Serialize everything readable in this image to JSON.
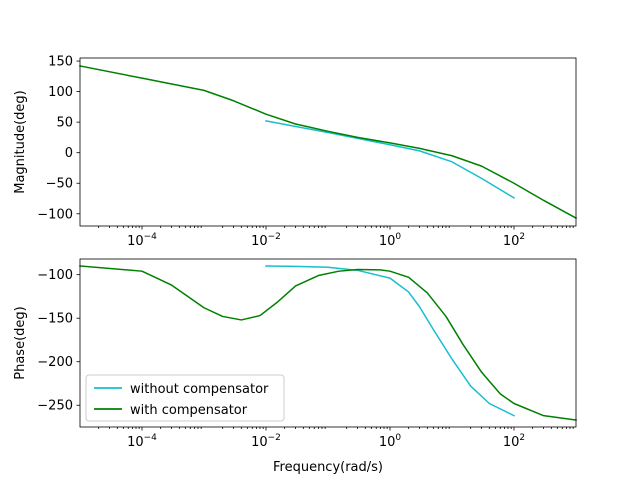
{
  "chart_data": [
    {
      "type": "line",
      "xscale": "log",
      "xlim": [
        1e-05,
        1000
      ],
      "ylim": [
        -120,
        155
      ],
      "xlabel": "",
      "ylabel": "Magnitude(deg)",
      "xticks": [
        0.0001,
        0.01,
        1,
        100
      ],
      "xtick_labels": [
        {
          "base": "10",
          "exp": "−4"
        },
        {
          "base": "10",
          "exp": "−2"
        },
        {
          "base": "10",
          "exp": "0"
        },
        {
          "base": "10",
          "exp": "2"
        }
      ],
      "yticks": [
        -100,
        -50,
        0,
        50,
        100,
        150
      ],
      "ytick_labels": [
        "−100",
        "−50",
        "0",
        "50",
        "100",
        "150"
      ],
      "grid": false,
      "series": [
        {
          "name": "without compensator",
          "color": "#17becf",
          "points": [
            [
              0.01,
              52
            ],
            [
              0.1,
              33
            ],
            [
              1,
              13
            ],
            [
              3,
              3
            ],
            [
              10,
              -15
            ],
            [
              30,
              -42
            ],
            [
              100,
              -74
            ]
          ]
        },
        {
          "name": "with compensator",
          "color": "#008000",
          "points": [
            [
              1e-05,
              142
            ],
            [
              0.0001,
              122
            ],
            [
              0.001,
              102
            ],
            [
              0.003,
              85
            ],
            [
              0.01,
              63
            ],
            [
              0.03,
              47
            ],
            [
              0.1,
              35
            ],
            [
              0.3,
              25
            ],
            [
              1,
              16
            ],
            [
              3,
              7
            ],
            [
              10,
              -5
            ],
            [
              30,
              -22
            ],
            [
              100,
              -50
            ],
            [
              300,
              -78
            ],
            [
              1000,
              -107
            ]
          ]
        }
      ]
    },
    {
      "type": "line",
      "xscale": "log",
      "xlim": [
        1e-05,
        1000
      ],
      "ylim": [
        -275,
        -82
      ],
      "xlabel": "Frequency(rad/s)",
      "ylabel": "Phase(deg)",
      "xticks": [
        0.0001,
        0.01,
        1,
        100
      ],
      "xtick_labels": [
        {
          "base": "10",
          "exp": "−4"
        },
        {
          "base": "10",
          "exp": "−2"
        },
        {
          "base": "10",
          "exp": "0"
        },
        {
          "base": "10",
          "exp": "2"
        }
      ],
      "yticks": [
        -250,
        -200,
        -150,
        -100
      ],
      "ytick_labels": [
        "−250",
        "−200",
        "−150",
        "−100"
      ],
      "grid": false,
      "legend_position": "lower-left",
      "series": [
        {
          "name": "without compensator",
          "color": "#17becf",
          "points": [
            [
              0.01,
              -90
            ],
            [
              0.03,
              -90.5
            ],
            [
              0.1,
              -91.5
            ],
            [
              0.3,
              -95
            ],
            [
              1,
              -104
            ],
            [
              2,
              -120
            ],
            [
              3,
              -137
            ],
            [
              5,
              -163
            ],
            [
              10,
              -197
            ],
            [
              20,
              -228
            ],
            [
              40,
              -248
            ],
            [
              100,
              -262
            ]
          ]
        },
        {
          "name": "with compensator",
          "color": "#008000",
          "points": [
            [
              1e-05,
              -90
            ],
            [
              0.0001,
              -96
            ],
            [
              0.0003,
              -112
            ],
            [
              0.001,
              -138
            ],
            [
              0.002,
              -148
            ],
            [
              0.004,
              -152
            ],
            [
              0.008,
              -147
            ],
            [
              0.015,
              -132
            ],
            [
              0.03,
              -113
            ],
            [
              0.07,
              -101
            ],
            [
              0.15,
              -96
            ],
            [
              0.3,
              -94
            ],
            [
              0.7,
              -94.5
            ],
            [
              1,
              -96
            ],
            [
              2,
              -103
            ],
            [
              4,
              -121
            ],
            [
              8,
              -148
            ],
            [
              15,
              -180
            ],
            [
              30,
              -212
            ],
            [
              60,
              -237
            ],
            [
              100,
              -248
            ],
            [
              300,
              -262
            ],
            [
              1000,
              -267
            ]
          ]
        }
      ]
    }
  ]
}
